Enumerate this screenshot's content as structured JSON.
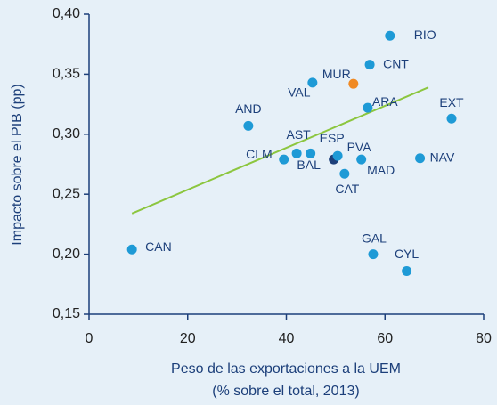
{
  "chart_data": {
    "type": "scatter",
    "xlabel": "Peso de las exportaciones a la UEM",
    "xlabel_sub": "(% sobre el total, 2013)",
    "ylabel": "Impacto sobre el PIB (pp)",
    "labels": [
      "RIO",
      "CNT",
      "MUR",
      "VAL",
      "ARA",
      "EXT",
      "AND",
      "AST",
      "BAL",
      "CLM",
      "ESP",
      "PVA",
      "MAD",
      "CAT",
      "NAV",
      "GAL",
      "CYL",
      "CAN"
    ],
    "x": [
      61.0,
      56.9,
      53.6,
      45.3,
      56.5,
      73.5,
      32.3,
      42.1,
      44.9,
      39.5,
      49.6,
      50.4,
      55.2,
      51.8,
      67.1,
      57.6,
      64.4,
      8.7
    ],
    "y": [
      0.382,
      0.358,
      0.342,
      0.343,
      0.322,
      0.313,
      0.307,
      0.284,
      0.284,
      0.279,
      0.279,
      0.282,
      0.279,
      0.267,
      0.28,
      0.2,
      0.186,
      0.204
    ],
    "colors": [
      "#1e9ad6",
      "#1e9ad6",
      "#f08a24",
      "#1e9ad6",
      "#1e9ad6",
      "#1e9ad6",
      "#1e9ad6",
      "#1e9ad6",
      "#1e9ad6",
      "#1e9ad6",
      "#1c3f7a",
      "#1e9ad6",
      "#1e9ad6",
      "#1e9ad6",
      "#1e9ad6",
      "#1e9ad6",
      "#1e9ad6",
      "#1e9ad6"
    ],
    "trendline": {
      "color": "#8cc63f",
      "x": [
        8.7,
        68.8
      ],
      "y": [
        0.234,
        0.339
      ]
    },
    "xlim": [
      0,
      80
    ],
    "xticks": [
      0,
      20,
      40,
      60,
      80
    ],
    "ylim": [
      0.15,
      0.4
    ],
    "yticks": [
      {
        "value": 0.15,
        "label": "0,15"
      },
      {
        "value": 0.2,
        "label": "0,20"
      },
      {
        "value": 0.25,
        "label": "0,25"
      },
      {
        "value": 0.3,
        "label": "0,30"
      },
      {
        "value": 0.35,
        "label": "0,35"
      },
      {
        "value": 0.4,
        "label": "0,40"
      }
    ],
    "grid": false
  }
}
